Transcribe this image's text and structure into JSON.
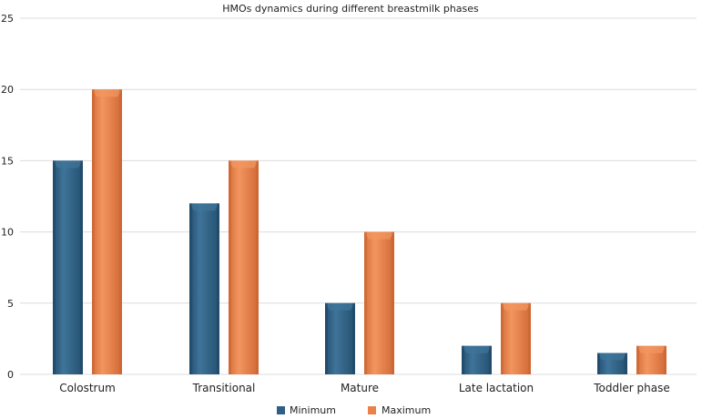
{
  "chart_data": {
    "type": "bar",
    "title": "HMOs dynamics during different breastmilk phases",
    "xlabel": "",
    "ylabel": "",
    "categories": [
      "Colostrum",
      "Transitional",
      "Mature",
      "Late lactation",
      "Toddler phase"
    ],
    "series": [
      {
        "name": "Minimum",
        "values": [
          15,
          12,
          5,
          2,
          1.5
        ],
        "color": "#2f5f86"
      },
      {
        "name": "Maximum",
        "values": [
          20,
          15,
          10,
          5,
          2
        ],
        "color": "#e8814a"
      }
    ],
    "ylim": [
      0,
      25
    ],
    "yticks": [
      0,
      5,
      10,
      15,
      20,
      25
    ],
    "grid": true,
    "legend_position": "bottom-center"
  },
  "colors": {
    "minimum_top": "#3f7499",
    "minimum_side": "#1f4766",
    "maximum_top": "#f2955f",
    "maximum_side": "#c8642f",
    "grid": "#dcdcdc",
    "axis_text": "#222222"
  }
}
